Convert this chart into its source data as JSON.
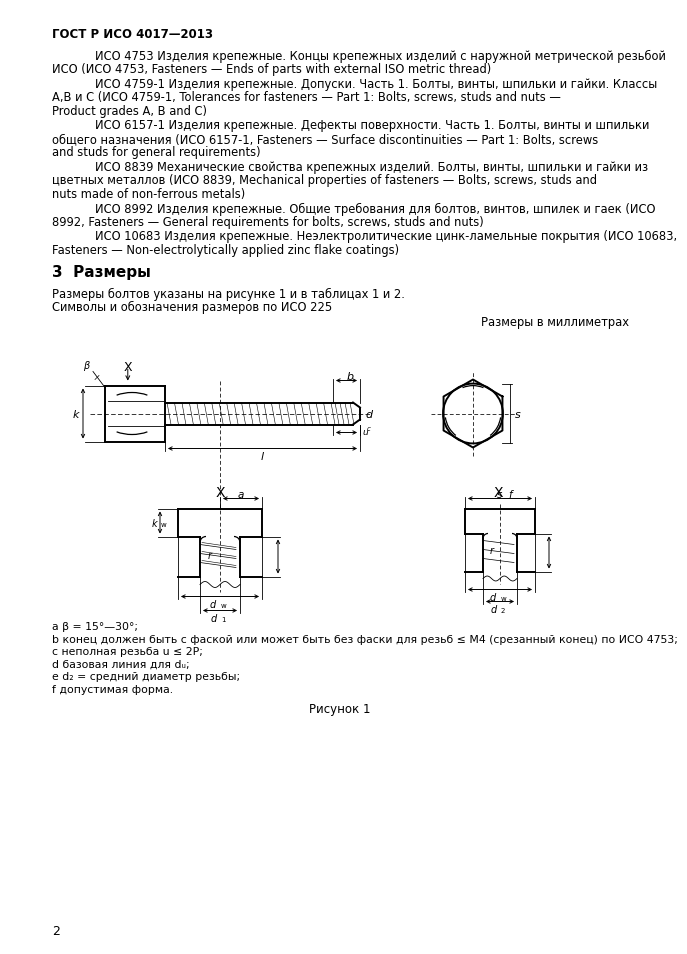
{
  "header": "ГОСТ Р ИСО 4017—2013",
  "body_paragraphs": [
    "ИСО 4753 Изделия крепежные. Концы крепежных изделий с наружной метрической резьбой ИСО (ИСО 4753, Fasteners — Ends of parts with external ISO metric thread)",
    "ИСО 4759-1  Изделия крепежные. Допуски. Часть 1. Болты, винты, шпильки и гайки. Классы А,В и С (ИСО 4759-1, Tolerances for fasteners — Part 1: Bolts, screws, studs and nuts — Product grades A, B and C)",
    "ИСО 6157-1  Изделия крепежные. Дефекты поверхности. Часть 1. Болты, винты и шпильки общего назначения (ИСО 6157-1, Fasteners — Surface discontinuities — Part 1: Bolts, screws and studs for general requirements)",
    "ИСО 8839  Механические свойства крепежных изделий. Болты, винты, шпильки и гайки из цветных металлов (ИСО 8839, Mechanical properties of fasteners — Bolts, screws, studs and nuts made of non-ferrous metals)",
    "ИСО 8992  Изделия крепежные. Общие требования для болтов, винтов, шпилек и гаек (ИСО 8992, Fasteners — General requirements for bolts, screws, studs and nuts)",
    "ИСО 10683  Изделия крепежные.  Неэлектролитические  цинк-ламельные  покрытия (ИСО 10683, Fasteners — Non-electrolytically applied zinc flake coatings)"
  ],
  "section3_title": "3  Размеры",
  "section3_line1": "Размеры болтов указаны на рисунке 1 и в таблицах 1 и 2.",
  "section3_line2": "Символы и обозначения размеров по ИСО 225",
  "dim_label": "Размеры в миллиметрах",
  "footnote_a": "a β = 15°—30°;",
  "footnote_b": "b конец должен быть с фаской или может быть без фаски для резьб ≤ M4 (срезанный конец) по ИСО 4753;",
  "footnote_c": "c неполная резьба u ≤ 2P;",
  "footnote_d": "d базовая линия для dᵤ;",
  "footnote_e": "e d₂ = средний диаметр резьбы;",
  "footnote_f": "f допустимая форма.",
  "figure_caption": "Рисунок 1",
  "page_number": "2",
  "bg_color": "#ffffff",
  "text_color": "#000000"
}
